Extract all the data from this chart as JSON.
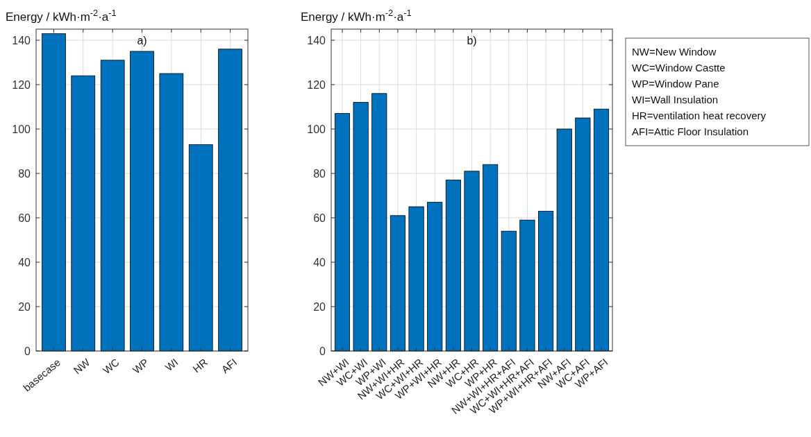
{
  "chart_data": [
    {
      "type": "bar",
      "ylabel": "Energy / kWh·m$^{-2}$·a$^{-1}$",
      "annotations": [
        "a)"
      ],
      "categories": [
        "basecase",
        "NW",
        "WC",
        "WP",
        "WI",
        "HR",
        "AFI"
      ],
      "values": [
        143,
        124,
        131,
        135,
        125,
        93,
        136
      ],
      "color": "#0072bd",
      "ylim": [
        0,
        145
      ],
      "yticks": [
        0,
        20,
        40,
        60,
        80,
        100,
        120,
        140
      ],
      "grid": true
    },
    {
      "type": "bar",
      "ylabel": "Energy / kWh·m$^{-2}$·a$^{-1}$",
      "annotations": [
        "b)",
        "NW=New Window",
        "WC=Window Castte",
        "WP=Window Pane",
        "WI=Wall Insulation",
        "HR=ventilation heat recovery",
        "AFI=Attic Floor Insulation"
      ],
      "categories": [
        "NW+WI",
        "WC+WI",
        "WP+WI",
        "NW+WI+HR",
        "WC+WI+HR",
        "WP+WI+HR",
        "NW+HR",
        "WC+HR",
        "WP+HR",
        "NW+WI+HR+AFI",
        "WC+WI+HR+AFI",
        "WP+WI+HR+AFI",
        "NW+AFI",
        "WC+AFI",
        "WP+AFI"
      ],
      "values": [
        107,
        112,
        116,
        61,
        65,
        67,
        77,
        81,
        84,
        54,
        59,
        63,
        100,
        105,
        109
      ],
      "color": "#0072bd",
      "ylim": [
        0,
        145
      ],
      "yticks": [
        0,
        20,
        40,
        60,
        80,
        100,
        120,
        140
      ],
      "grid": true
    }
  ]
}
